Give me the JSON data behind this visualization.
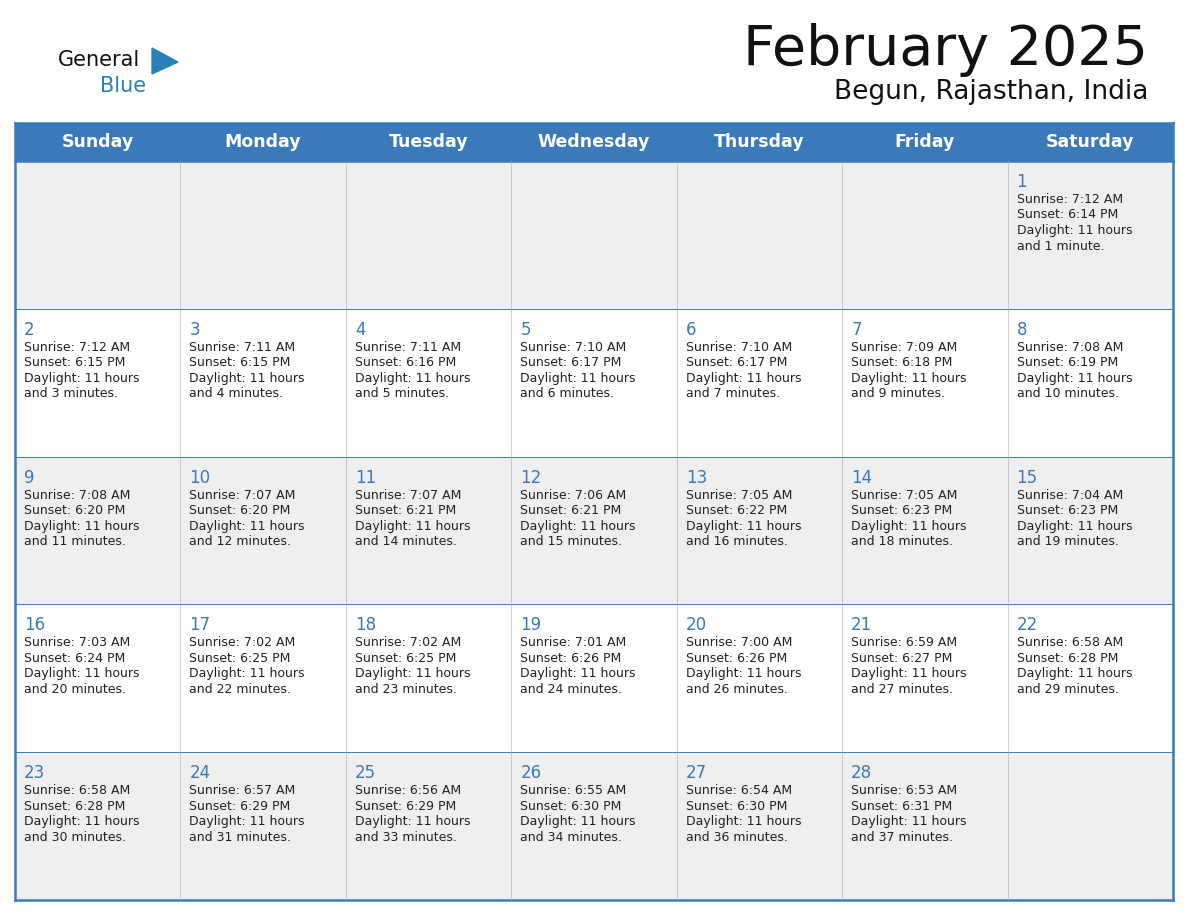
{
  "title": "February 2025",
  "subtitle": "Begun, Rajasthan, India",
  "days_of_week": [
    "Sunday",
    "Monday",
    "Tuesday",
    "Wednesday",
    "Thursday",
    "Friday",
    "Saturday"
  ],
  "header_bg": "#3a7aba",
  "header_text": "#ffffff",
  "row_bg_odd": "#efefef",
  "row_bg_even": "#ffffff",
  "border_color": "#3a7aba",
  "day_number_color": "#3a7aba",
  "text_color": "#222222",
  "logo_general_color": "#111111",
  "logo_blue_color": "#2980b9",
  "calendar_data": [
    [
      null,
      null,
      null,
      null,
      null,
      null,
      {
        "day": 1,
        "sunrise": "7:12 AM",
        "sunset": "6:14 PM",
        "daylight_line1": "Daylight: 11 hours",
        "daylight_line2": "and 1 minute."
      }
    ],
    [
      {
        "day": 2,
        "sunrise": "7:12 AM",
        "sunset": "6:15 PM",
        "daylight_line1": "Daylight: 11 hours",
        "daylight_line2": "and 3 minutes."
      },
      {
        "day": 3,
        "sunrise": "7:11 AM",
        "sunset": "6:15 PM",
        "daylight_line1": "Daylight: 11 hours",
        "daylight_line2": "and 4 minutes."
      },
      {
        "day": 4,
        "sunrise": "7:11 AM",
        "sunset": "6:16 PM",
        "daylight_line1": "Daylight: 11 hours",
        "daylight_line2": "and 5 minutes."
      },
      {
        "day": 5,
        "sunrise": "7:10 AM",
        "sunset": "6:17 PM",
        "daylight_line1": "Daylight: 11 hours",
        "daylight_line2": "and 6 minutes."
      },
      {
        "day": 6,
        "sunrise": "7:10 AM",
        "sunset": "6:17 PM",
        "daylight_line1": "Daylight: 11 hours",
        "daylight_line2": "and 7 minutes."
      },
      {
        "day": 7,
        "sunrise": "7:09 AM",
        "sunset": "6:18 PM",
        "daylight_line1": "Daylight: 11 hours",
        "daylight_line2": "and 9 minutes."
      },
      {
        "day": 8,
        "sunrise": "7:08 AM",
        "sunset": "6:19 PM",
        "daylight_line1": "Daylight: 11 hours",
        "daylight_line2": "and 10 minutes."
      }
    ],
    [
      {
        "day": 9,
        "sunrise": "7:08 AM",
        "sunset": "6:20 PM",
        "daylight_line1": "Daylight: 11 hours",
        "daylight_line2": "and 11 minutes."
      },
      {
        "day": 10,
        "sunrise": "7:07 AM",
        "sunset": "6:20 PM",
        "daylight_line1": "Daylight: 11 hours",
        "daylight_line2": "and 12 minutes."
      },
      {
        "day": 11,
        "sunrise": "7:07 AM",
        "sunset": "6:21 PM",
        "daylight_line1": "Daylight: 11 hours",
        "daylight_line2": "and 14 minutes."
      },
      {
        "day": 12,
        "sunrise": "7:06 AM",
        "sunset": "6:21 PM",
        "daylight_line1": "Daylight: 11 hours",
        "daylight_line2": "and 15 minutes."
      },
      {
        "day": 13,
        "sunrise": "7:05 AM",
        "sunset": "6:22 PM",
        "daylight_line1": "Daylight: 11 hours",
        "daylight_line2": "and 16 minutes."
      },
      {
        "day": 14,
        "sunrise": "7:05 AM",
        "sunset": "6:23 PM",
        "daylight_line1": "Daylight: 11 hours",
        "daylight_line2": "and 18 minutes."
      },
      {
        "day": 15,
        "sunrise": "7:04 AM",
        "sunset": "6:23 PM",
        "daylight_line1": "Daylight: 11 hours",
        "daylight_line2": "and 19 minutes."
      }
    ],
    [
      {
        "day": 16,
        "sunrise": "7:03 AM",
        "sunset": "6:24 PM",
        "daylight_line1": "Daylight: 11 hours",
        "daylight_line2": "and 20 minutes."
      },
      {
        "day": 17,
        "sunrise": "7:02 AM",
        "sunset": "6:25 PM",
        "daylight_line1": "Daylight: 11 hours",
        "daylight_line2": "and 22 minutes."
      },
      {
        "day": 18,
        "sunrise": "7:02 AM",
        "sunset": "6:25 PM",
        "daylight_line1": "Daylight: 11 hours",
        "daylight_line2": "and 23 minutes."
      },
      {
        "day": 19,
        "sunrise": "7:01 AM",
        "sunset": "6:26 PM",
        "daylight_line1": "Daylight: 11 hours",
        "daylight_line2": "and 24 minutes."
      },
      {
        "day": 20,
        "sunrise": "7:00 AM",
        "sunset": "6:26 PM",
        "daylight_line1": "Daylight: 11 hours",
        "daylight_line2": "and 26 minutes."
      },
      {
        "day": 21,
        "sunrise": "6:59 AM",
        "sunset": "6:27 PM",
        "daylight_line1": "Daylight: 11 hours",
        "daylight_line2": "and 27 minutes."
      },
      {
        "day": 22,
        "sunrise": "6:58 AM",
        "sunset": "6:28 PM",
        "daylight_line1": "Daylight: 11 hours",
        "daylight_line2": "and 29 minutes."
      }
    ],
    [
      {
        "day": 23,
        "sunrise": "6:58 AM",
        "sunset": "6:28 PM",
        "daylight_line1": "Daylight: 11 hours",
        "daylight_line2": "and 30 minutes."
      },
      {
        "day": 24,
        "sunrise": "6:57 AM",
        "sunset": "6:29 PM",
        "daylight_line1": "Daylight: 11 hours",
        "daylight_line2": "and 31 minutes."
      },
      {
        "day": 25,
        "sunrise": "6:56 AM",
        "sunset": "6:29 PM",
        "daylight_line1": "Daylight: 11 hours",
        "daylight_line2": "and 33 minutes."
      },
      {
        "day": 26,
        "sunrise": "6:55 AM",
        "sunset": "6:30 PM",
        "daylight_line1": "Daylight: 11 hours",
        "daylight_line2": "and 34 minutes."
      },
      {
        "day": 27,
        "sunrise": "6:54 AM",
        "sunset": "6:30 PM",
        "daylight_line1": "Daylight: 11 hours",
        "daylight_line2": "and 36 minutes."
      },
      {
        "day": 28,
        "sunrise": "6:53 AM",
        "sunset": "6:31 PM",
        "daylight_line1": "Daylight: 11 hours",
        "daylight_line2": "and 37 minutes."
      },
      null
    ]
  ]
}
